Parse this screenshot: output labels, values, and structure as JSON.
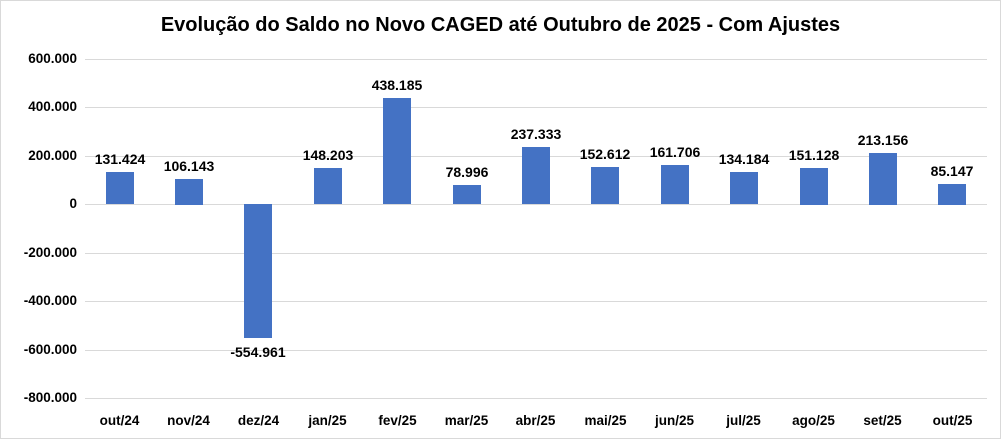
{
  "chart_data": {
    "type": "bar",
    "title": "Evolução do Saldo no Novo CAGED até Outubro de 2025 - Com Ajustes",
    "categories": [
      "out/24",
      "nov/24",
      "dez/24",
      "jan/25",
      "fev/25",
      "mar/25",
      "abr/25",
      "mai/25",
      "jun/25",
      "jul/25",
      "ago/25",
      "set/25",
      "out/25"
    ],
    "values": [
      131424,
      106143,
      -554961,
      148203,
      438185,
      78996,
      237333,
      152612,
      161706,
      134184,
      151128,
      213156,
      85147
    ],
    "value_labels": [
      "131.424",
      "106.143",
      "-554.961",
      "148.203",
      "438.185",
      "78.996",
      "237.333",
      "152.612",
      "161.706",
      "134.184",
      "151.128",
      "213.156",
      "85.147"
    ],
    "y_ticks": [
      {
        "value": 600000,
        "label": "600.000"
      },
      {
        "value": 400000,
        "label": "400.000"
      },
      {
        "value": 200000,
        "label": "200.000"
      },
      {
        "value": 0,
        "label": "0"
      },
      {
        "value": -200000,
        "label": "-200.000"
      },
      {
        "value": -400000,
        "label": "-400.000"
      },
      {
        "value": -600000,
        "label": "-600.000"
      },
      {
        "value": -800000,
        "label": "-800.000"
      }
    ],
    "ylim": [
      -800000,
      600000
    ],
    "xlabel": "",
    "ylabel": "",
    "grid": true,
    "legend": false,
    "bar_color": "#4472C4",
    "gridline_color": "#D9D9D9",
    "background_color": "#FFFFFF"
  }
}
